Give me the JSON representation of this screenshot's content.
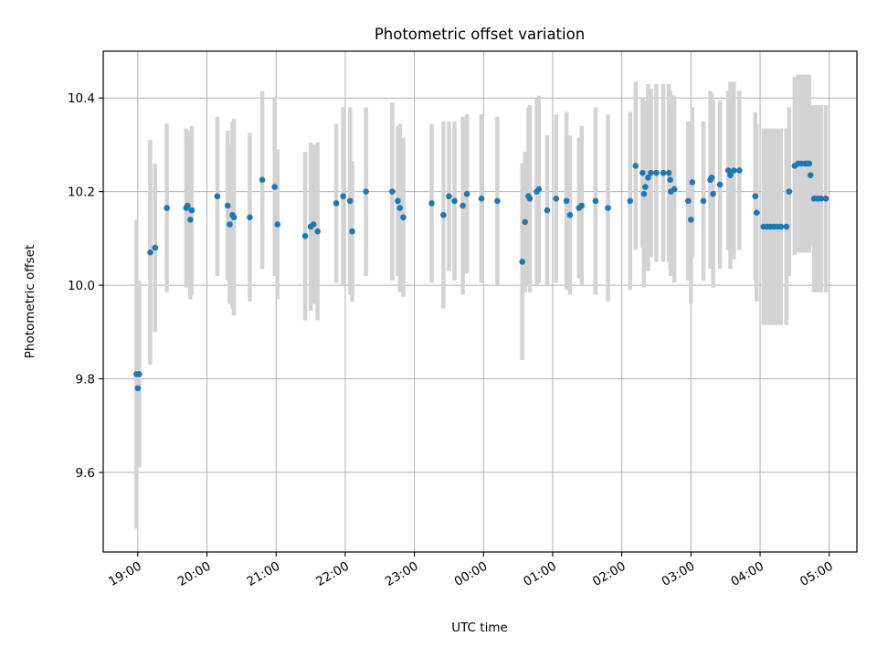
{
  "colors": {
    "point": "#1f77b4",
    "errorbar": "#d3d3d3",
    "grid": "#b0b0b0"
  },
  "chart_data": {
    "type": "scatter",
    "title": "Photometric offset variation",
    "xlabel": "UTC time",
    "ylabel": "Photometric offset",
    "grid": true,
    "x_unit": "hours since 19:00 UTC",
    "xlim": [
      -0.5,
      10.4
    ],
    "ylim": [
      9.43,
      10.5
    ],
    "x_ticks": [
      0,
      1,
      2,
      3,
      4,
      5,
      6,
      7,
      8,
      9,
      10
    ],
    "x_tick_labels": [
      "19:00",
      "20:00",
      "21:00",
      "22:00",
      "23:00",
      "00:00",
      "01:00",
      "02:00",
      "03:00",
      "04:00",
      "05:00"
    ],
    "y_ticks": [
      9.6,
      9.8,
      10.0,
      10.2,
      10.4
    ],
    "y_tick_labels": [
      "9.6",
      "9.8",
      "10.0",
      "10.2",
      "10.4"
    ],
    "series": [
      {
        "points": [
          [
            -0.02,
            9.81,
            0.33
          ],
          [
            0.0,
            9.78,
            0.17
          ],
          [
            0.02,
            9.81,
            0.2
          ],
          [
            0.18,
            10.07,
            0.24
          ],
          [
            0.25,
            10.08,
            0.18
          ],
          [
            0.42,
            10.165,
            0.18
          ],
          [
            0.7,
            10.165,
            0.17
          ],
          [
            0.72,
            10.17,
            0.16
          ],
          [
            0.76,
            10.14,
            0.17
          ],
          [
            0.78,
            10.16,
            0.18
          ],
          [
            1.15,
            10.19,
            0.17
          ],
          [
            1.3,
            10.17,
            0.16
          ],
          [
            1.33,
            10.13,
            0.17
          ],
          [
            1.37,
            10.15,
            0.2
          ],
          [
            1.39,
            10.145,
            0.21
          ],
          [
            1.62,
            10.145,
            0.18
          ],
          [
            1.8,
            10.225,
            0.19
          ],
          [
            1.98,
            10.21,
            0.19
          ],
          [
            2.02,
            10.13,
            0.16
          ],
          [
            2.42,
            10.105,
            0.18
          ],
          [
            2.5,
            10.125,
            0.18
          ],
          [
            2.54,
            10.13,
            0.17
          ],
          [
            2.6,
            10.115,
            0.19
          ],
          [
            2.87,
            10.175,
            0.17
          ],
          [
            2.97,
            10.19,
            0.19
          ],
          [
            3.07,
            10.18,
            0.2
          ],
          [
            3.1,
            10.115,
            0.15
          ],
          [
            3.3,
            10.2,
            0.18
          ],
          [
            3.68,
            10.2,
            0.19
          ],
          [
            3.76,
            10.18,
            0.16
          ],
          [
            3.79,
            10.165,
            0.18
          ],
          [
            3.84,
            10.145,
            0.17
          ],
          [
            4.25,
            10.175,
            0.17
          ],
          [
            4.42,
            10.15,
            0.2
          ],
          [
            4.5,
            10.19,
            0.16
          ],
          [
            4.58,
            10.18,
            0.17
          ],
          [
            4.7,
            10.17,
            0.19
          ],
          [
            4.76,
            10.195,
            0.17
          ],
          [
            4.97,
            10.185,
            0.18
          ],
          [
            5.2,
            10.18,
            0.18
          ],
          [
            5.56,
            10.05,
            0.21
          ],
          [
            5.6,
            10.135,
            0.15
          ],
          [
            5.65,
            10.19,
            0.19
          ],
          [
            5.67,
            10.185,
            0.2
          ],
          [
            5.77,
            10.2,
            0.2
          ],
          [
            5.8,
            10.205,
            0.2
          ],
          [
            5.92,
            10.16,
            0.16
          ],
          [
            6.05,
            10.185,
            0.18
          ],
          [
            6.2,
            10.18,
            0.19
          ],
          [
            6.25,
            10.15,
            0.17
          ],
          [
            6.38,
            10.165,
            0.15
          ],
          [
            6.42,
            10.17,
            0.17
          ],
          [
            6.62,
            10.18,
            0.2
          ],
          [
            6.8,
            10.165,
            0.2
          ],
          [
            7.12,
            10.18,
            0.19
          ],
          [
            7.2,
            10.255,
            0.18
          ],
          [
            7.3,
            10.24,
            0.16
          ],
          [
            7.32,
            10.195,
            0.2
          ],
          [
            7.34,
            10.21,
            0.17
          ],
          [
            7.38,
            10.23,
            0.2
          ],
          [
            7.42,
            10.24,
            0.18
          ],
          [
            7.5,
            10.24,
            0.19
          ],
          [
            7.6,
            10.24,
            0.19
          ],
          [
            7.68,
            10.24,
            0.19
          ],
          [
            7.7,
            10.225,
            0.19
          ],
          [
            7.71,
            10.2,
            0.18
          ],
          [
            7.76,
            10.205,
            0.2
          ],
          [
            7.96,
            10.18,
            0.17
          ],
          [
            8.0,
            10.14,
            0.18
          ],
          [
            8.02,
            10.22,
            0.16
          ],
          [
            8.18,
            10.18,
            0.17
          ],
          [
            8.28,
            10.225,
            0.19
          ],
          [
            8.3,
            10.23,
            0.18
          ],
          [
            8.32,
            10.195,
            0.2
          ],
          [
            8.42,
            10.215,
            0.18
          ],
          [
            8.54,
            10.245,
            0.17
          ],
          [
            8.57,
            10.235,
            0.2
          ],
          [
            8.62,
            10.245,
            0.19
          ],
          [
            8.7,
            10.245,
            0.17
          ],
          [
            8.93,
            10.19,
            0.18
          ],
          [
            8.95,
            10.155,
            0.19
          ],
          [
            9.05,
            10.125,
            0.21
          ],
          [
            9.1,
            10.125,
            0.21
          ],
          [
            9.15,
            10.125,
            0.21
          ],
          [
            9.2,
            10.125,
            0.21
          ],
          [
            9.25,
            10.125,
            0.21
          ],
          [
            9.3,
            10.125,
            0.21
          ],
          [
            9.38,
            10.125,
            0.21
          ],
          [
            9.42,
            10.2,
            0.18
          ],
          [
            9.5,
            10.255,
            0.19
          ],
          [
            9.55,
            10.26,
            0.19
          ],
          [
            9.6,
            10.26,
            0.19
          ],
          [
            9.65,
            10.26,
            0.19
          ],
          [
            9.68,
            10.26,
            0.19
          ],
          [
            9.71,
            10.26,
            0.19
          ],
          [
            9.73,
            10.235,
            0.15
          ],
          [
            9.78,
            10.185,
            0.2
          ],
          [
            9.83,
            10.185,
            0.2
          ],
          [
            9.88,
            10.185,
            0.2
          ],
          [
            9.95,
            10.185,
            0.2
          ]
        ]
      }
    ]
  }
}
